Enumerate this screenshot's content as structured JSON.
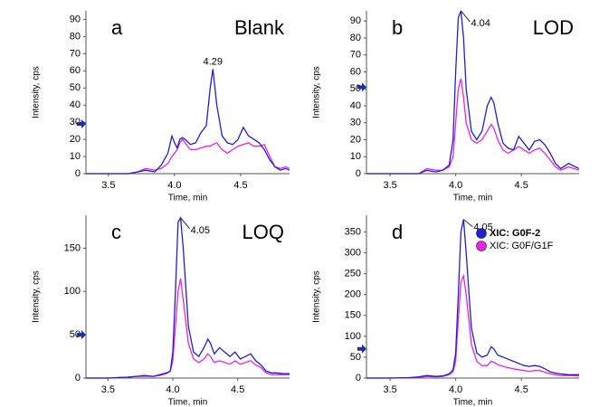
{
  "chart_data": [
    {
      "type": "line",
      "letter": "a",
      "title": "Blank",
      "xlabel": "Time, min",
      "ylabel": "Intensity, cps",
      "peak_label": "4.29",
      "marker": 29,
      "x": [
        3.33,
        3.5,
        3.65,
        3.72,
        3.78,
        3.85,
        3.9,
        3.95,
        3.98,
        4.0,
        4.02,
        4.04,
        4.06,
        4.08,
        4.12,
        4.16,
        4.2,
        4.24,
        4.27,
        4.29,
        4.32,
        4.36,
        4.4,
        4.44,
        4.48,
        4.52,
        4.56,
        4.6,
        4.64,
        4.68,
        4.72,
        4.76,
        4.8,
        4.84,
        4.87
      ],
      "series": [
        {
          "color": "#1f1fd6",
          "values": [
            0,
            0,
            0,
            1,
            2,
            1,
            5,
            12,
            22,
            18,
            15,
            20,
            21,
            20,
            17,
            18,
            24,
            28,
            50,
            61,
            40,
            22,
            18,
            17,
            20,
            27,
            22,
            20,
            18,
            14,
            8,
            4,
            2,
            3,
            2
          ]
        },
        {
          "color": "#f020e8",
          "values": [
            0,
            0,
            0,
            1,
            3,
            2,
            3,
            6,
            10,
            12,
            14,
            18,
            20,
            18,
            14,
            14,
            15,
            16,
            16,
            17,
            18,
            14,
            12,
            14,
            16,
            17,
            18,
            16,
            16,
            17,
            10,
            4,
            3,
            4,
            3
          ]
        }
      ],
      "xlim": [
        3.33,
        4.87
      ],
      "ylim": [
        0,
        95
      ],
      "xticks": [
        3.5,
        {
          "value": 4,
          "label": "4.0"
        },
        4.5
      ],
      "yticks": [
        0,
        10,
        20,
        30,
        40,
        50,
        60,
        70,
        80,
        90
      ]
    },
    {
      "type": "line",
      "letter": "b",
      "title": "LOD",
      "xlabel": "Time, min",
      "ylabel": "Intensity, cps",
      "peak_label": "4.04",
      "marker": 51,
      "x": [
        3.32,
        3.5,
        3.65,
        3.72,
        3.78,
        3.85,
        3.9,
        3.95,
        3.98,
        4.0,
        4.02,
        4.04,
        4.06,
        4.08,
        4.12,
        4.16,
        4.2,
        4.24,
        4.27,
        4.29,
        4.32,
        4.36,
        4.4,
        4.44,
        4.48,
        4.52,
        4.56,
        4.6,
        4.64,
        4.68,
        4.72,
        4.76,
        4.8,
        4.86,
        4.94
      ],
      "series": [
        {
          "color": "#1f1fd6",
          "values": [
            0,
            0,
            0,
            0,
            2,
            1,
            2,
            5,
            20,
            60,
            92,
            96,
            80,
            50,
            25,
            20,
            25,
            40,
            45,
            42,
            30,
            18,
            15,
            14,
            22,
            18,
            14,
            19,
            20,
            17,
            12,
            6,
            3,
            6,
            3
          ]
        },
        {
          "color": "#f020e8",
          "values": [
            0,
            0,
            0,
            0,
            3,
            2,
            2,
            4,
            10,
            30,
            50,
            56,
            45,
            30,
            20,
            18,
            20,
            25,
            29,
            27,
            20,
            14,
            12,
            14,
            16,
            14,
            12,
            14,
            15,
            12,
            8,
            4,
            2,
            4,
            2
          ]
        }
      ],
      "xlim": [
        3.32,
        4.94
      ],
      "ylim": [
        0,
        96
      ],
      "xticks": [
        3.5,
        {
          "value": 4,
          "label": "4.0"
        },
        4.5
      ],
      "yticks": [
        0,
        10,
        20,
        30,
        40,
        50,
        60,
        70,
        80,
        90
      ]
    },
    {
      "type": "line",
      "letter": "c",
      "title": "LOQ",
      "xlabel": "Time, min",
      "ylabel": "Intensity, cps",
      "peak_label": "4.05",
      "marker": 50,
      "x": [
        3.33,
        3.5,
        3.65,
        3.72,
        3.78,
        3.85,
        3.9,
        3.95,
        3.98,
        4.0,
        4.02,
        4.04,
        4.06,
        4.08,
        4.12,
        4.16,
        4.2,
        4.24,
        4.27,
        4.29,
        4.32,
        4.36,
        4.4,
        4.44,
        4.48,
        4.52,
        4.56,
        4.6,
        4.64,
        4.68,
        4.72,
        4.76,
        4.8,
        4.85,
        4.9
      ],
      "series": [
        {
          "color": "#1f1fd6",
          "values": [
            0,
            0,
            1,
            2,
            3,
            2,
            4,
            6,
            8,
            30,
            100,
            180,
            185,
            150,
            60,
            30,
            25,
            35,
            45,
            40,
            28,
            35,
            30,
            25,
            30,
            22,
            25,
            28,
            20,
            15,
            8,
            6,
            6,
            5,
            5
          ]
        },
        {
          "color": "#f020e8",
          "values": [
            0,
            0,
            1,
            2,
            2,
            2,
            3,
            5,
            8,
            20,
            60,
            100,
            115,
            90,
            40,
            22,
            18,
            22,
            28,
            25,
            18,
            20,
            18,
            16,
            20,
            16,
            18,
            20,
            15,
            12,
            6,
            4,
            4,
            4,
            4
          ]
        }
      ],
      "xlim": [
        3.33,
        4.9
      ],
      "ylim": [
        0,
        188
      ],
      "xticks": [
        3.5,
        {
          "value": 4,
          "label": "4.0"
        },
        4.5
      ],
      "yticks": [
        0,
        50,
        100,
        150
      ]
    },
    {
      "type": "line",
      "letter": "d",
      "xlabel": "Time, min",
      "ylabel": "Intensity, cps",
      "peak_label": "4.05",
      "marker": 70,
      "legend": "upper right",
      "x": [
        3.32,
        3.5,
        3.65,
        3.72,
        3.78,
        3.85,
        3.9,
        3.95,
        3.98,
        4.0,
        4.02,
        4.04,
        4.06,
        4.08,
        4.12,
        4.16,
        4.2,
        4.24,
        4.27,
        4.29,
        4.32,
        4.36,
        4.4,
        4.44,
        4.48,
        4.52,
        4.56,
        4.6,
        4.64,
        4.68,
        4.72,
        4.76,
        4.8,
        4.86,
        4.94
      ],
      "series": [
        {
          "name": "XIC: G0F-2",
          "color": "#1f1fd6",
          "values": [
            0,
            0,
            1,
            3,
            6,
            4,
            5,
            10,
            20,
            60,
            200,
            350,
            380,
            300,
            120,
            60,
            50,
            55,
            75,
            70,
            55,
            50,
            45,
            40,
            35,
            30,
            28,
            30,
            28,
            22,
            15,
            12,
            10,
            8,
            8
          ]
        },
        {
          "name": "XIC: G0F/G1F",
          "color": "#f020e8",
          "values": [
            0,
            0,
            1,
            2,
            4,
            3,
            4,
            8,
            15,
            40,
            140,
            230,
            245,
            200,
            80,
            40,
            30,
            30,
            40,
            38,
            32,
            28,
            25,
            22,
            20,
            18,
            16,
            18,
            18,
            14,
            10,
            8,
            6,
            6,
            5
          ]
        }
      ],
      "xlim": [
        3.32,
        4.94
      ],
      "ylim": [
        0,
        390
      ],
      "xticks": [
        3.5,
        {
          "value": 4,
          "label": "4.0"
        },
        4.5
      ],
      "yticks": [
        0,
        50,
        100,
        150,
        200,
        250,
        300,
        350
      ]
    }
  ]
}
